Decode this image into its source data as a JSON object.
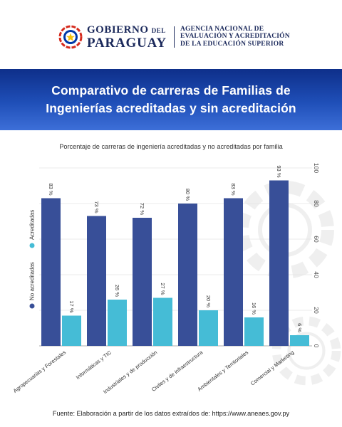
{
  "header": {
    "gov_line1": "GOBIERNO",
    "gov_del": "DEL",
    "gov_line2": "PARAGUAY",
    "agency_lines": [
      "AGENCIA NACIONAL DE",
      "EVALUACIÓN Y ACREDITACIÓN",
      "DE LA EDUCACIÓN SUPERIOR"
    ]
  },
  "banner": {
    "title_line1": "Comparativo de carreras de Familias de",
    "title_line2": "Ingenierías acreditadas y sin acreditación"
  },
  "colors": {
    "no_acreditadas": "#384f98",
    "acreditadas": "#45bcd6",
    "banner_top": "#0e2f8a",
    "banner_bottom": "#3d6fd8"
  },
  "chart_data": {
    "type": "bar",
    "subtitle": "Porcentaje de carreras de ingeniería acreditadas y no acreditadas por familia",
    "categories": [
      "Agropecuarias y Forestales",
      "Informáticas y TIC",
      "Industriales y de producción",
      "Civiles y de infraestructura",
      "Ambientales y Territoriales",
      "Comercial y Marketing"
    ],
    "series": [
      {
        "name": "No acreditadas",
        "values": [
          83,
          73,
          72,
          80,
          83,
          93
        ]
      },
      {
        "name": "Acreditadas",
        "values": [
          17,
          26,
          27,
          20,
          16,
          6
        ]
      }
    ],
    "value_suffix": " %",
    "ylim": [
      0,
      100
    ],
    "yticks": [
      0,
      20,
      40,
      60,
      80,
      100
    ],
    "y_axis_side": "right",
    "grid": true,
    "legend_position": "left, vertical"
  },
  "footer": {
    "source": "Fuente: Elaboración a partir de los datos extraídos de: https://www.aneaes.gov.py"
  }
}
